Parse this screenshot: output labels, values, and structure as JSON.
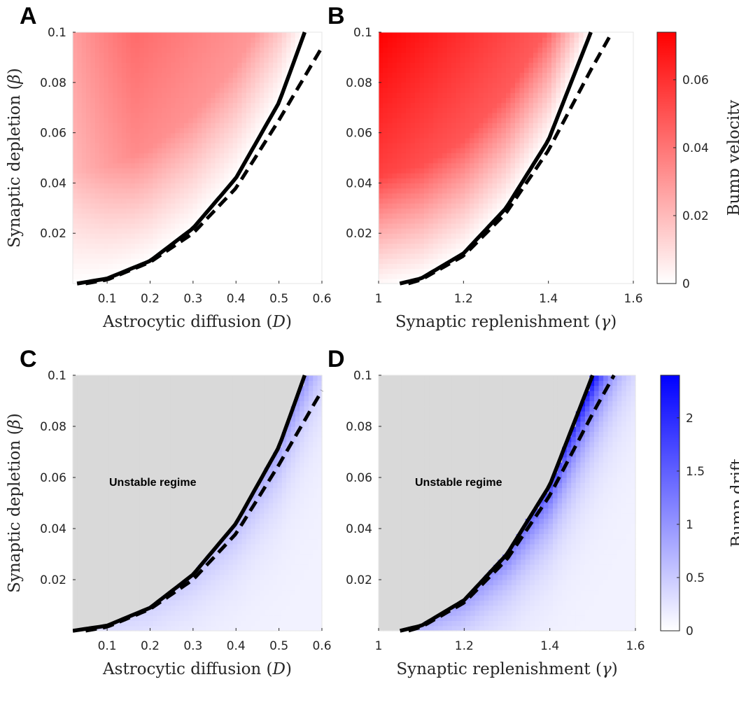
{
  "colors": {
    "velocity_max": "#ff0000",
    "drift_max": "#0000ff",
    "unstable_fill": "#d9d9d9",
    "curve": "#000000"
  },
  "colorbars": {
    "velocity": {
      "label": "Bump velocity",
      "range": [
        0,
        0.074
      ],
      "ticks": [
        "0",
        "0.02",
        "0.04",
        "0.06"
      ],
      "tick_values": [
        0,
        0.02,
        0.04,
        0.06
      ]
    },
    "drift": {
      "label": "Bump drift",
      "range": [
        0,
        2.4
      ],
      "ticks": [
        "0",
        "0.5",
        "1",
        "1.5",
        "2"
      ],
      "tick_values": [
        0,
        0.5,
        1,
        1.5,
        2
      ]
    }
  },
  "chart_data": [
    {
      "panel": "A",
      "type": "heatmap",
      "colormap": "velocity",
      "xlabel": "Astrocytic diffusion ($D$)",
      "ylabel": "Synaptic depletion ($\\beta$)",
      "xlim": [
        0.02,
        0.6
      ],
      "ylim": [
        0,
        0.1
      ],
      "xticks": [
        "0.1",
        "0.2",
        "0.3",
        "0.4",
        "0.5",
        "0.6"
      ],
      "xtick_values": [
        0.1,
        0.2,
        0.3,
        0.4,
        0.5,
        0.6
      ],
      "yticks": [
        "0.02",
        "0.04",
        "0.06",
        "0.08",
        "0.1"
      ],
      "ytick_values": [
        0.02,
        0.04,
        0.06,
        0.08,
        0.1
      ],
      "boundary_solid": [
        [
          0.03,
          0.0
        ],
        [
          0.1,
          0.002
        ],
        [
          0.2,
          0.009
        ],
        [
          0.3,
          0.022
        ],
        [
          0.4,
          0.042
        ],
        [
          0.5,
          0.072
        ],
        [
          0.56,
          0.1
        ]
      ],
      "boundary_dashed": [
        [
          0.05,
          0.0
        ],
        [
          0.1,
          0.0015
        ],
        [
          0.2,
          0.0085
        ],
        [
          0.3,
          0.02
        ],
        [
          0.4,
          0.038
        ],
        [
          0.5,
          0.065
        ],
        [
          0.6,
          0.094
        ]
      ],
      "peak_value": 0.05,
      "annotation": ""
    },
    {
      "panel": "B",
      "type": "heatmap",
      "colormap": "velocity",
      "xlabel": "Synaptic replenishment ($\\gamma$)",
      "ylabel": "",
      "xlim": [
        1.0,
        1.6
      ],
      "ylim": [
        0,
        0.1
      ],
      "xticks": [
        "1",
        "1.2",
        "1.4",
        "1.6"
      ],
      "xtick_values": [
        1.0,
        1.2,
        1.4,
        1.6
      ],
      "yticks": [
        "0.02",
        "0.04",
        "0.06",
        "0.08",
        "0.1"
      ],
      "ytick_values": [
        0.02,
        0.04,
        0.06,
        0.08,
        0.1
      ],
      "boundary_solid": [
        [
          1.05,
          0.0
        ],
        [
          1.1,
          0.002
        ],
        [
          1.2,
          0.012
        ],
        [
          1.3,
          0.03
        ],
        [
          1.4,
          0.057
        ],
        [
          1.5,
          0.1
        ]
      ],
      "boundary_dashed": [
        [
          1.07,
          0.0
        ],
        [
          1.1,
          0.0015
        ],
        [
          1.2,
          0.011
        ],
        [
          1.3,
          0.028
        ],
        [
          1.4,
          0.053
        ],
        [
          1.5,
          0.085
        ],
        [
          1.55,
          0.1
        ]
      ],
      "peak_value": 0.074,
      "annotation": ""
    },
    {
      "panel": "C",
      "type": "heatmap",
      "colormap": "drift",
      "xlabel": "Astrocytic diffusion ($D$)",
      "ylabel": "Synaptic depletion ($\\beta$)",
      "xlim": [
        0.02,
        0.6
      ],
      "ylim": [
        0,
        0.1
      ],
      "xticks": [
        "0.1",
        "0.2",
        "0.3",
        "0.4",
        "0.5",
        "0.6"
      ],
      "xtick_values": [
        0.1,
        0.2,
        0.3,
        0.4,
        0.5,
        0.6
      ],
      "yticks": [
        "0.02",
        "0.04",
        "0.06",
        "0.08",
        "0.1"
      ],
      "ytick_values": [
        0.02,
        0.04,
        0.06,
        0.08,
        0.1
      ],
      "boundary_solid": [
        [
          0.02,
          0.0
        ],
        [
          0.1,
          0.002
        ],
        [
          0.2,
          0.009
        ],
        [
          0.3,
          0.022
        ],
        [
          0.4,
          0.042
        ],
        [
          0.5,
          0.072
        ],
        [
          0.56,
          0.1
        ]
      ],
      "boundary_dashed": [
        [
          0.05,
          0.0
        ],
        [
          0.1,
          0.0015
        ],
        [
          0.2,
          0.0085
        ],
        [
          0.3,
          0.02
        ],
        [
          0.4,
          0.038
        ],
        [
          0.5,
          0.065
        ],
        [
          0.6,
          0.094
        ]
      ],
      "peak_value": 1.0,
      "annotation": "Unstable regime"
    },
    {
      "panel": "D",
      "type": "heatmap",
      "colormap": "drift",
      "xlabel": "Synaptic replenishment ($\\gamma$)",
      "ylabel": "",
      "xlim": [
        1.0,
        1.6
      ],
      "ylim": [
        0,
        0.1
      ],
      "xticks": [
        "1",
        "1.2",
        "1.4",
        "1.6"
      ],
      "xtick_values": [
        1.0,
        1.2,
        1.4,
        1.6
      ],
      "yticks": [
        "0.02",
        "0.04",
        "0.06",
        "0.08",
        "0.1"
      ],
      "ytick_values": [
        0.02,
        0.04,
        0.06,
        0.08,
        0.1
      ],
      "boundary_solid": [
        [
          1.05,
          0.0
        ],
        [
          1.1,
          0.002
        ],
        [
          1.2,
          0.012
        ],
        [
          1.3,
          0.03
        ],
        [
          1.4,
          0.057
        ],
        [
          1.5,
          0.1
        ]
      ],
      "boundary_dashed": [
        [
          1.07,
          0.0
        ],
        [
          1.1,
          0.0015
        ],
        [
          1.2,
          0.011
        ],
        [
          1.3,
          0.028
        ],
        [
          1.4,
          0.053
        ],
        [
          1.5,
          0.085
        ],
        [
          1.55,
          0.1
        ]
      ],
      "peak_value": 2.4,
      "annotation": "Unstable regime"
    }
  ]
}
